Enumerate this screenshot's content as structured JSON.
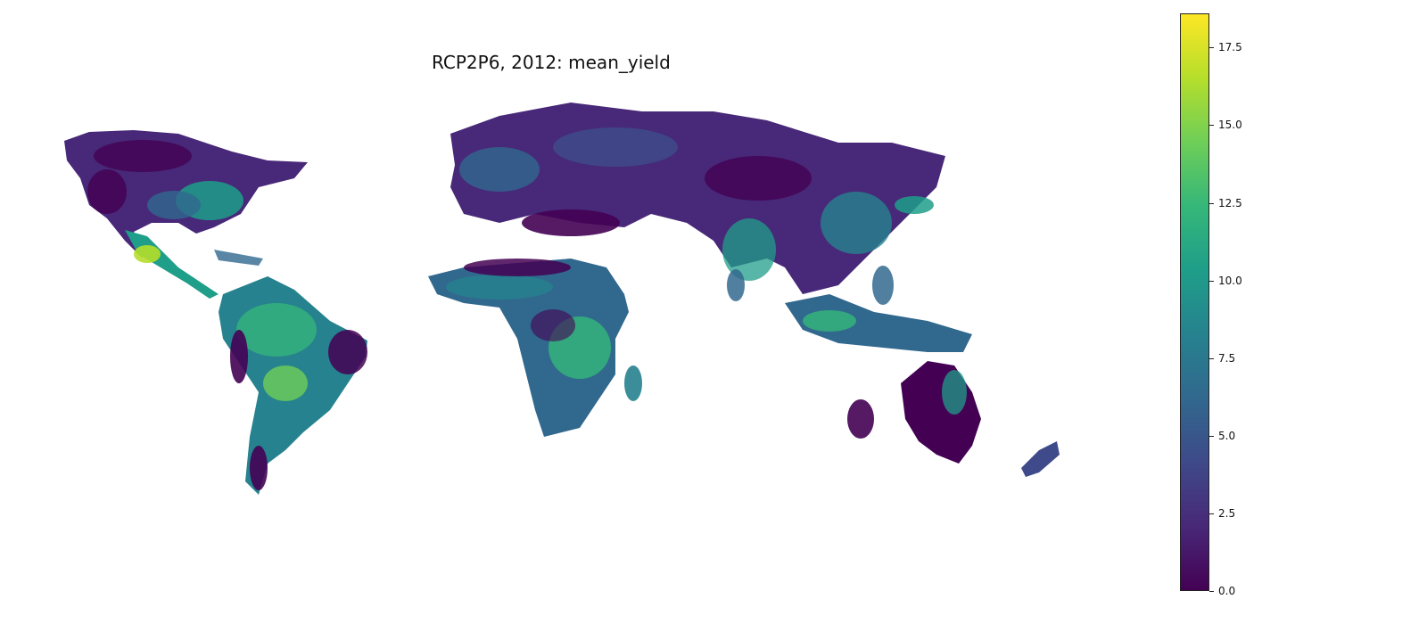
{
  "title": "RCP2P6, 2012: mean_yield",
  "colorbar": {
    "colormap": "viridis",
    "range": [
      0.0,
      18.6
    ],
    "ticks": [
      "0.0",
      "2.5",
      "5.0",
      "7.5",
      "10.0",
      "12.5",
      "15.0",
      "17.5"
    ],
    "tick_values": [
      0,
      2.5,
      5,
      7.5,
      10,
      12.5,
      15,
      17.5
    ],
    "colors": [
      "#440154",
      "#482878",
      "#3e4a89",
      "#31688e",
      "#26828e",
      "#1f9e89",
      "#35b779",
      "#6ece58",
      "#b5de2b",
      "#fde725"
    ]
  },
  "map": {
    "type": "hexbin choropleth",
    "variable": "mean_yield",
    "projection": "equirectangular, Pacific-centered gap",
    "background": "#ffffff"
  }
}
